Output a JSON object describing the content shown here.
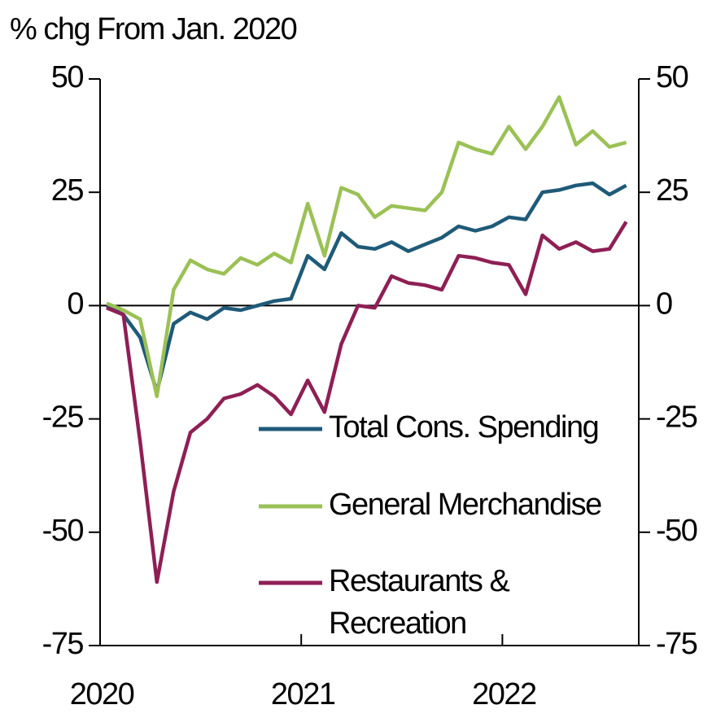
{
  "chart_data": {
    "type": "line",
    "y_label": "% chg From Jan. 2020",
    "categories": [
      "2020",
      null,
      null,
      null,
      null,
      null,
      null,
      null,
      null,
      null,
      null,
      null,
      "2021",
      null,
      null,
      null,
      null,
      null,
      null,
      null,
      null,
      null,
      null,
      null,
      "2022",
      null,
      null,
      null,
      null,
      null,
      null,
      null
    ],
    "series": [
      {
        "name": "Total Cons. Spending",
        "color": "#1f5a78",
        "values": [
          0,
          -2,
          -7,
          -19,
          -4,
          -1.5,
          -3,
          -0.5,
          -1,
          0,
          1,
          1.5,
          11,
          8,
          16,
          13,
          12.5,
          14,
          12,
          13.5,
          15,
          17.5,
          16.5,
          17.5,
          19.5,
          19,
          25,
          25.5,
          26.5,
          27,
          24.5,
          26.5
        ]
      },
      {
        "name": "General Merchandise",
        "color": "#9bc156",
        "values": [
          0.5,
          -1,
          -3,
          -20,
          3.5,
          10,
          8,
          7,
          10.5,
          9,
          11.5,
          9.5,
          22.5,
          11,
          26,
          24.5,
          19.5,
          22,
          21.5,
          21,
          25,
          36,
          34.5,
          33.5,
          39.5,
          34.5,
          39.5,
          46,
          35.5,
          38.5,
          35,
          36
        ]
      },
      {
        "name": "Restaurants &\nRecreation",
        "color": "#8e1f55",
        "values": [
          -0.5,
          -2,
          -30,
          -61,
          -41,
          -28,
          -25,
          -20.5,
          -19.5,
          -17.5,
          -20,
          -24,
          -16.5,
          -23.5,
          -8.5,
          0,
          -0.5,
          6.5,
          5,
          4.5,
          3.5,
          11,
          10.5,
          9.5,
          9,
          2.5,
          15.5,
          12.5,
          14,
          12,
          12.5,
          18.5
        ]
      }
    ],
    "ylim": [
      -75,
      50
    ],
    "yticks": [
      -75,
      -50,
      -25,
      0,
      25,
      50
    ],
    "y2lim": [
      -75,
      50
    ],
    "y2ticks": [
      -75,
      -50,
      -25,
      0,
      25,
      50
    ]
  }
}
